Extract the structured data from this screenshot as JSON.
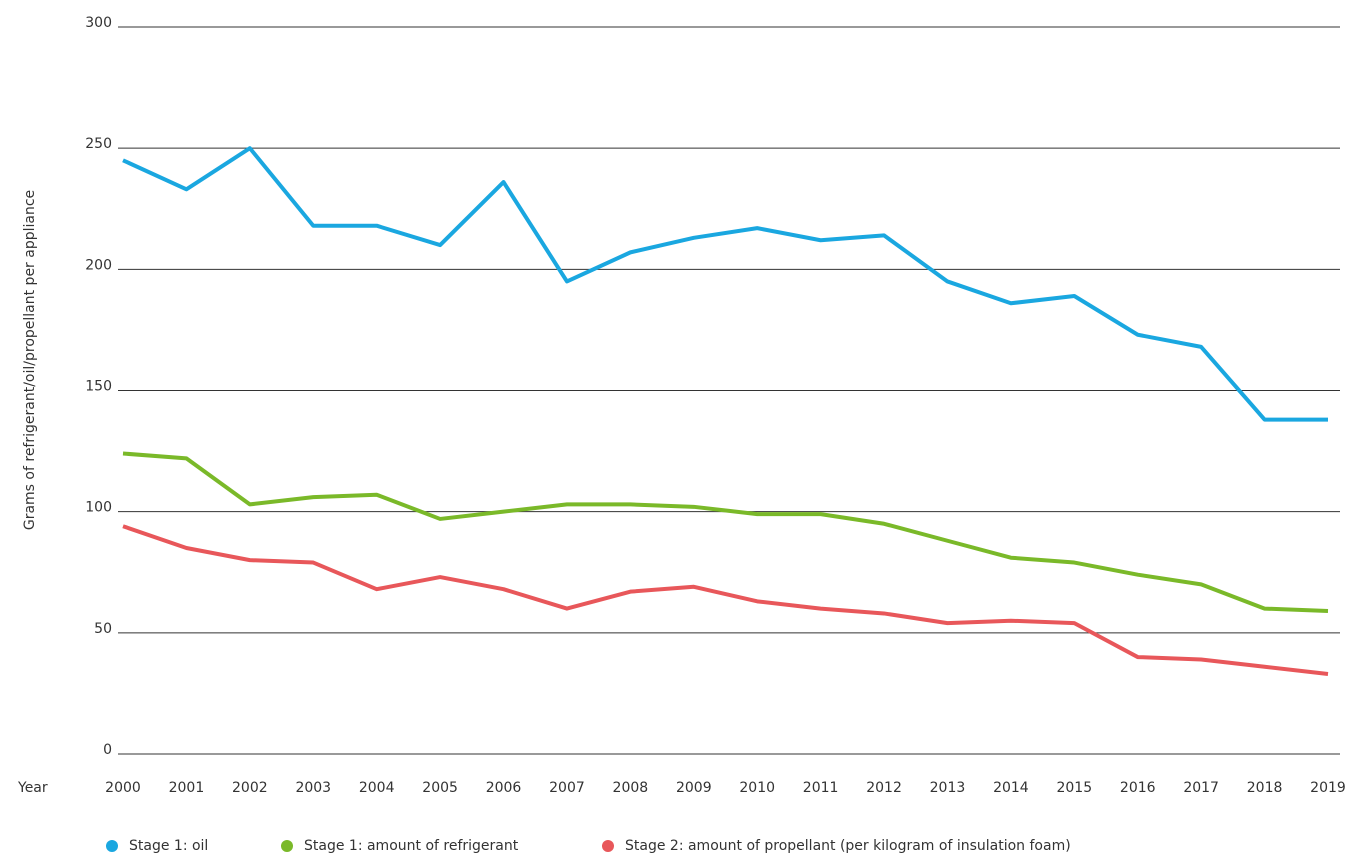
{
  "chart_data": {
    "type": "line",
    "y_label": "Grams of refrigerant/oil/propellant per appliance",
    "x_label": "Year",
    "categories": [
      "2000",
      "2001",
      "2002",
      "2003",
      "2004",
      "2005",
      "2006",
      "2007",
      "2008",
      "2009",
      "2010",
      "2011",
      "2012",
      "2013",
      "2014",
      "2015",
      "2016",
      "2017",
      "2018",
      "2019"
    ],
    "series": [
      {
        "name": "Stage 1: oil",
        "color": "#1aa7e0",
        "values": [
          245,
          233,
          250,
          218,
          218,
          210,
          236,
          195,
          207,
          213,
          217,
          212,
          214,
          195,
          186,
          189,
          173,
          168,
          138,
          138
        ]
      },
      {
        "name": "Stage 1: amount of refrigerant",
        "color": "#7ab929",
        "values": [
          124,
          122,
          103,
          106,
          107,
          97,
          100,
          103,
          103,
          102,
          99,
          99,
          95,
          88,
          81,
          79,
          74,
          70,
          60,
          59
        ]
      },
      {
        "name": "Stage 2: amount of propellant (per kilogram of insulation foam)",
        "color": "#e8575a",
        "values": [
          94,
          85,
          80,
          79,
          68,
          73,
          68,
          60,
          67,
          69,
          63,
          60,
          58,
          54,
          55,
          54,
          40,
          39,
          36,
          33
        ]
      }
    ],
    "ylim": [
      0,
      300
    ],
    "yticks": [
      0,
      50,
      100,
      150,
      200,
      250,
      300
    ],
    "grid": true
  }
}
